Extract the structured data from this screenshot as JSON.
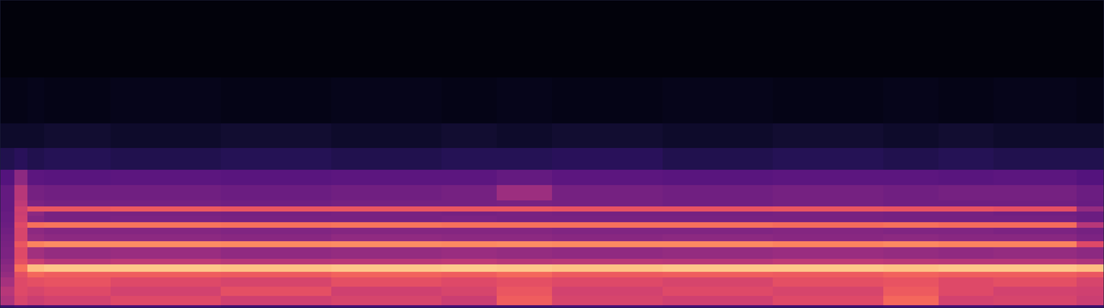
{
  "chart_data": {
    "type": "heatmap",
    "tick_labels": false,
    "xlim": [
      0,
      100
    ],
    "ylim": [
      0,
      100
    ],
    "zlim": [
      0,
      100
    ],
    "x": [
      0,
      1.3,
      2.5,
      4,
      10,
      20,
      30,
      40,
      45,
      50,
      60,
      70,
      80,
      85,
      90,
      97.5,
      100
    ],
    "y": [
      0,
      1,
      4,
      7,
      10,
      11.8,
      14.2,
      16,
      19.8,
      21.8,
      24,
      26.2,
      28,
      30,
      31.4,
      33,
      35,
      40,
      45,
      52,
      60,
      75,
      100
    ],
    "values": [
      [
        20,
        22,
        21,
        22,
        23,
        21,
        22,
        22,
        21,
        23,
        22,
        21,
        22,
        22,
        21,
        20
      ],
      [
        48,
        58,
        55,
        57,
        60,
        56,
        58,
        55,
        66,
        58,
        56,
        60,
        68,
        57,
        58,
        55
      ],
      [
        50,
        60,
        58,
        60,
        57,
        62,
        56,
        58,
        64,
        57,
        60,
        58,
        65,
        60,
        57,
        56
      ],
      [
        46,
        60,
        62,
        63,
        60,
        58,
        62,
        60,
        62,
        60,
        58,
        62,
        63,
        60,
        62,
        58
      ],
      [
        42,
        62,
        68,
        66,
        66,
        65,
        67,
        66,
        68,
        65,
        66,
        65,
        67,
        66,
        66,
        64
      ],
      [
        40,
        70,
        86,
        88,
        88,
        87,
        88,
        89,
        88,
        87,
        88,
        88,
        87,
        88,
        88,
        86
      ],
      [
        38,
        62,
        55,
        50,
        52,
        50,
        51,
        52,
        50,
        51,
        50,
        52,
        51,
        50,
        50,
        48
      ],
      [
        36,
        60,
        45,
        42,
        43,
        41,
        42,
        43,
        42,
        41,
        42,
        43,
        42,
        41,
        42,
        40
      ],
      [
        35,
        64,
        74,
        76,
        76,
        75,
        76,
        75,
        76,
        75,
        75,
        74,
        75,
        74,
        74,
        60
      ],
      [
        34,
        58,
        42,
        40,
        40,
        39,
        41,
        40,
        40,
        39,
        40,
        39,
        40,
        39,
        39,
        36
      ],
      [
        33,
        58,
        40,
        38,
        38,
        37,
        38,
        38,
        38,
        37,
        37,
        38,
        37,
        37,
        36,
        34
      ],
      [
        32,
        60,
        70,
        71,
        71,
        70,
        71,
        70,
        70,
        70,
        70,
        69,
        70,
        69,
        69,
        50
      ],
      [
        31,
        56,
        38,
        35,
        36,
        35,
        35,
        36,
        35,
        35,
        35,
        35,
        34,
        34,
        34,
        32
      ],
      [
        31,
        55,
        40,
        35,
        35,
        34,
        35,
        34,
        35,
        34,
        34,
        35,
        34,
        34,
        33,
        32
      ],
      [
        30,
        56,
        64,
        64,
        65,
        64,
        64,
        64,
        64,
        63,
        63,
        64,
        63,
        63,
        62,
        42
      ],
      [
        30,
        52,
        36,
        34,
        34,
        33,
        34,
        34,
        35,
        34,
        33,
        34,
        33,
        33,
        33,
        31
      ],
      [
        30,
        50,
        34,
        33,
        33,
        32,
        33,
        34,
        44,
        34,
        33,
        34,
        33,
        34,
        34,
        32
      ],
      [
        26,
        40,
        28,
        27,
        28,
        27,
        28,
        28,
        30,
        28,
        27,
        28,
        28,
        27,
        28,
        26
      ],
      [
        14,
        16,
        14,
        15,
        14,
        15,
        14,
        15,
        15,
        16,
        14,
        15,
        14,
        15,
        14,
        14
      ],
      [
        8,
        8,
        8,
        9,
        8,
        9,
        8,
        9,
        8,
        9,
        8,
        9,
        8,
        9,
        8,
        8
      ],
      [
        4,
        4,
        5,
        4,
        5,
        4,
        5,
        4,
        5,
        4,
        5,
        4,
        5,
        4,
        5,
        4
      ],
      [
        2,
        2,
        2,
        2,
        2,
        2,
        2,
        2,
        2,
        2,
        2,
        2,
        2,
        2,
        2,
        2
      ]
    ]
  }
}
